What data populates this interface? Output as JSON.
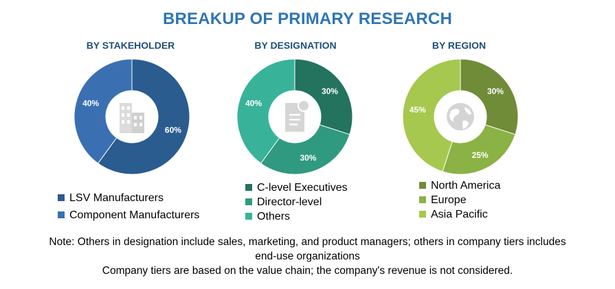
{
  "title": "BREAKUP OF PRIMARY RESEARCH",
  "chart_data": [
    {
      "type": "pie",
      "title": "BY STAKEHOLDER",
      "categories": [
        "LSV Manufacturers",
        "Component Manufacturers"
      ],
      "values": [
        60,
        40
      ],
      "labels": [
        "60%",
        "40%"
      ],
      "colors": [
        "#2a5c8f",
        "#3a70b2"
      ],
      "center_icon": "building-icon",
      "legend_position": "bottom"
    },
    {
      "type": "pie",
      "title": "BY DESIGNATION",
      "categories": [
        "C-level Executives",
        "Director-level",
        "Others"
      ],
      "values": [
        30,
        30,
        40
      ],
      "labels": [
        "30%",
        "30%",
        "40%"
      ],
      "colors": [
        "#23735f",
        "#2f9a80",
        "#38b39a"
      ],
      "center_icon": "document-icon",
      "legend_position": "bottom"
    },
    {
      "type": "pie",
      "title": "BY REGION",
      "categories": [
        "North America",
        "Europe",
        "Asia Pacific"
      ],
      "values": [
        30,
        25,
        45
      ],
      "labels": [
        "30%",
        "25%",
        "45%"
      ],
      "colors": [
        "#708c38",
        "#8bb244",
        "#a6c84e"
      ],
      "center_icon": "globe-icon",
      "legend_position": "bottom"
    }
  ],
  "notes": {
    "line1": "Note: Others in designation include sales, marketing, and product managers; others in company tiers includes",
    "line2": "end-use organizations",
    "line3": "Company tiers are based on the value chain; the company's revenue is not considered."
  }
}
